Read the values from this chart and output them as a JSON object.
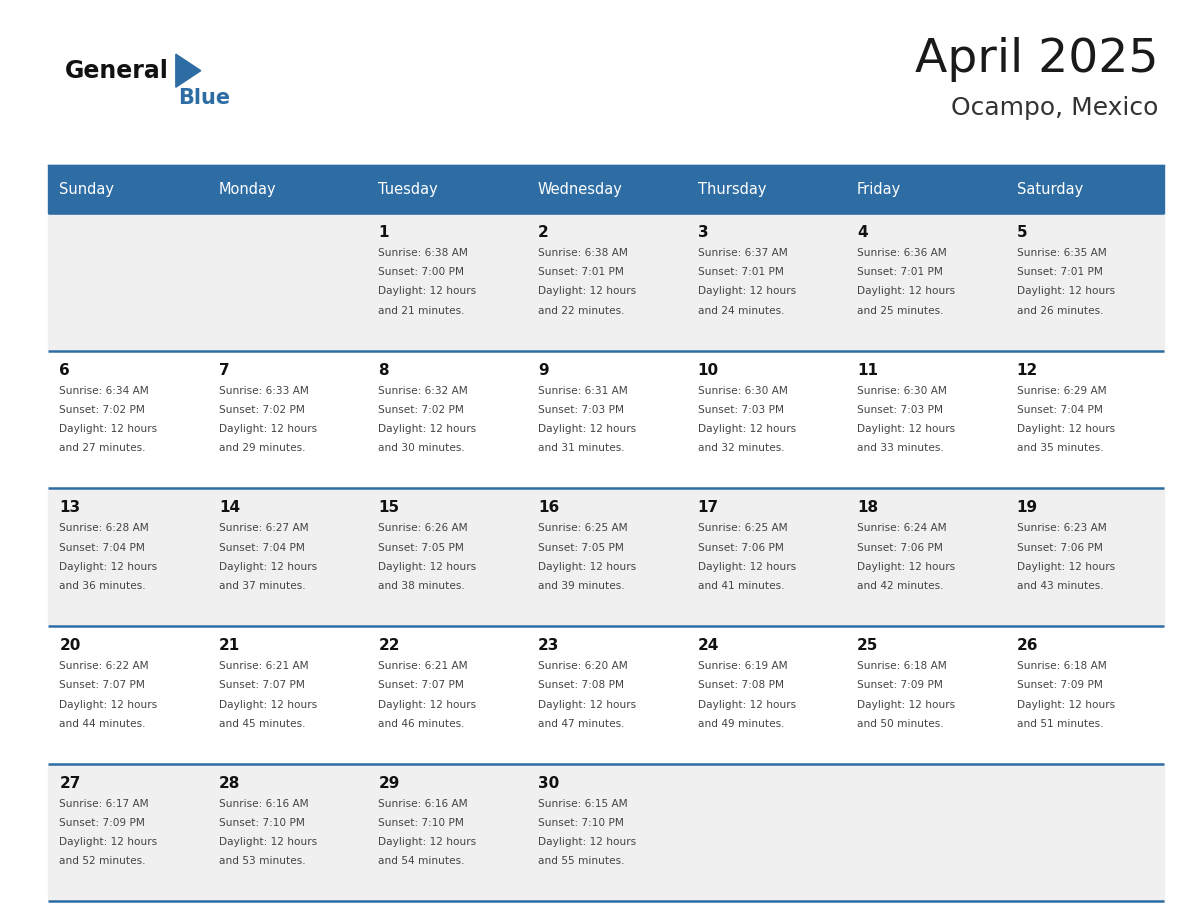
{
  "title": "April 2025",
  "subtitle": "Ocampo, Mexico",
  "header_bg_color": "#2E6DA4",
  "header_text_color": "#FFFFFF",
  "cell_bg_even": "#F0F0F0",
  "cell_bg_odd": "#FFFFFF",
  "divider_color": "#2E6DA4",
  "day_names": [
    "Sunday",
    "Monday",
    "Tuesday",
    "Wednesday",
    "Thursday",
    "Friday",
    "Saturday"
  ],
  "title_color": "#1a1a1a",
  "subtitle_color": "#333333",
  "cell_text_color": "#444444",
  "logo_text_color": "#111111",
  "logo_blue_color": "#2E6DA4",
  "weeks": [
    [
      {
        "day": "",
        "sunrise": "",
        "sunset": "",
        "daylight_min": ""
      },
      {
        "day": "",
        "sunrise": "",
        "sunset": "",
        "daylight_min": ""
      },
      {
        "day": "1",
        "sunrise": "6:38 AM",
        "sunset": "7:00 PM",
        "daylight_min": "21"
      },
      {
        "day": "2",
        "sunrise": "6:38 AM",
        "sunset": "7:01 PM",
        "daylight_min": "22"
      },
      {
        "day": "3",
        "sunrise": "6:37 AM",
        "sunset": "7:01 PM",
        "daylight_min": "24"
      },
      {
        "day": "4",
        "sunrise": "6:36 AM",
        "sunset": "7:01 PM",
        "daylight_min": "25"
      },
      {
        "day": "5",
        "sunrise": "6:35 AM",
        "sunset": "7:01 PM",
        "daylight_min": "26"
      }
    ],
    [
      {
        "day": "6",
        "sunrise": "6:34 AM",
        "sunset": "7:02 PM",
        "daylight_min": "27"
      },
      {
        "day": "7",
        "sunrise": "6:33 AM",
        "sunset": "7:02 PM",
        "daylight_min": "29"
      },
      {
        "day": "8",
        "sunrise": "6:32 AM",
        "sunset": "7:02 PM",
        "daylight_min": "30"
      },
      {
        "day": "9",
        "sunrise": "6:31 AM",
        "sunset": "7:03 PM",
        "daylight_min": "31"
      },
      {
        "day": "10",
        "sunrise": "6:30 AM",
        "sunset": "7:03 PM",
        "daylight_min": "32"
      },
      {
        "day": "11",
        "sunrise": "6:30 AM",
        "sunset": "7:03 PM",
        "daylight_min": "33"
      },
      {
        "day": "12",
        "sunrise": "6:29 AM",
        "sunset": "7:04 PM",
        "daylight_min": "35"
      }
    ],
    [
      {
        "day": "13",
        "sunrise": "6:28 AM",
        "sunset": "7:04 PM",
        "daylight_min": "36"
      },
      {
        "day": "14",
        "sunrise": "6:27 AM",
        "sunset": "7:04 PM",
        "daylight_min": "37"
      },
      {
        "day": "15",
        "sunrise": "6:26 AM",
        "sunset": "7:05 PM",
        "daylight_min": "38"
      },
      {
        "day": "16",
        "sunrise": "6:25 AM",
        "sunset": "7:05 PM",
        "daylight_min": "39"
      },
      {
        "day": "17",
        "sunrise": "6:25 AM",
        "sunset": "7:06 PM",
        "daylight_min": "41"
      },
      {
        "day": "18",
        "sunrise": "6:24 AM",
        "sunset": "7:06 PM",
        "daylight_min": "42"
      },
      {
        "day": "19",
        "sunrise": "6:23 AM",
        "sunset": "7:06 PM",
        "daylight_min": "43"
      }
    ],
    [
      {
        "day": "20",
        "sunrise": "6:22 AM",
        "sunset": "7:07 PM",
        "daylight_min": "44"
      },
      {
        "day": "21",
        "sunrise": "6:21 AM",
        "sunset": "7:07 PM",
        "daylight_min": "45"
      },
      {
        "day": "22",
        "sunrise": "6:21 AM",
        "sunset": "7:07 PM",
        "daylight_min": "46"
      },
      {
        "day": "23",
        "sunrise": "6:20 AM",
        "sunset": "7:08 PM",
        "daylight_min": "47"
      },
      {
        "day": "24",
        "sunrise": "6:19 AM",
        "sunset": "7:08 PM",
        "daylight_min": "49"
      },
      {
        "day": "25",
        "sunrise": "6:18 AM",
        "sunset": "7:09 PM",
        "daylight_min": "50"
      },
      {
        "day": "26",
        "sunrise": "6:18 AM",
        "sunset": "7:09 PM",
        "daylight_min": "51"
      }
    ],
    [
      {
        "day": "27",
        "sunrise": "6:17 AM",
        "sunset": "7:09 PM",
        "daylight_min": "52"
      },
      {
        "day": "28",
        "sunrise": "6:16 AM",
        "sunset": "7:10 PM",
        "daylight_min": "53"
      },
      {
        "day": "29",
        "sunrise": "6:16 AM",
        "sunset": "7:10 PM",
        "daylight_min": "54"
      },
      {
        "day": "30",
        "sunrise": "6:15 AM",
        "sunset": "7:10 PM",
        "daylight_min": "55"
      },
      {
        "day": "",
        "sunrise": "",
        "sunset": "",
        "daylight_min": ""
      },
      {
        "day": "",
        "sunrise": "",
        "sunset": "",
        "daylight_min": ""
      },
      {
        "day": "",
        "sunrise": "",
        "sunset": "",
        "daylight_min": ""
      }
    ]
  ]
}
